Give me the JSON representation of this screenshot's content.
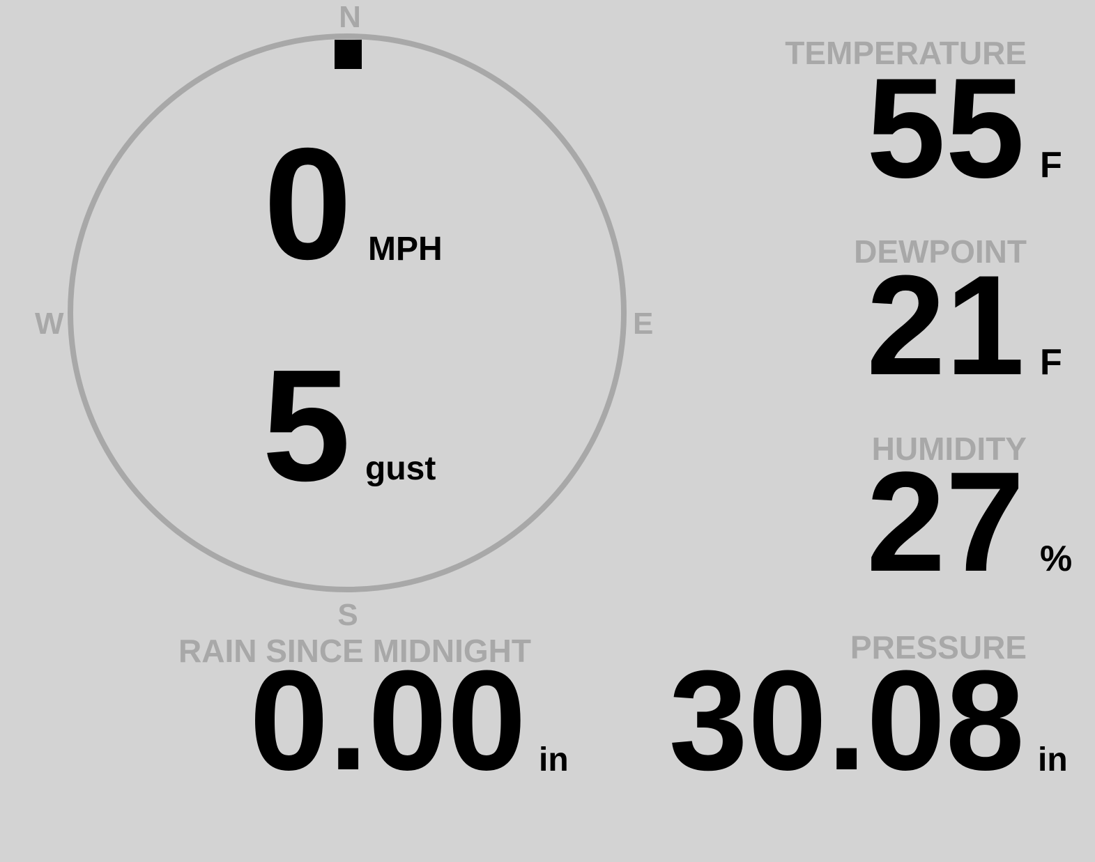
{
  "colors": {
    "background": "#d3d3d3",
    "muted": "#a8a8a8",
    "value": "#000000"
  },
  "wind": {
    "compass": {
      "n": "N",
      "s": "S",
      "e": "E",
      "w": "W"
    },
    "direction_deg": 0,
    "speed": "0",
    "speed_unit": "MPH",
    "gust": "5",
    "gust_label": "gust"
  },
  "temperature": {
    "label": "TEMPERATURE",
    "value": "55",
    "unit": "F"
  },
  "dewpoint": {
    "label": "DEWPOINT",
    "value": "21",
    "unit": "F"
  },
  "humidity": {
    "label": "HUMIDITY",
    "value": "27",
    "unit": "%"
  },
  "rain": {
    "label": "RAIN SINCE MIDNIGHT",
    "value": "0.00",
    "unit": "in"
  },
  "pressure": {
    "label": "PRESSURE",
    "value": "30.08",
    "unit": "in"
  }
}
